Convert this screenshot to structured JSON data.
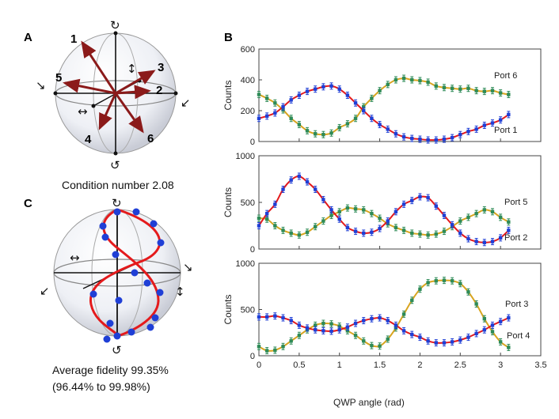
{
  "panels": {
    "A": "A",
    "B": "B",
    "C": "C"
  },
  "sphereA": {
    "vectors": [
      "1",
      "2",
      "3",
      "4",
      "5",
      "6"
    ],
    "caption": "Condition number 2.08",
    "pol_top": "↻",
    "pol_bottom": "↺",
    "pol_left": "↘",
    "pol_right": "↙",
    "pol_vert": "↕",
    "pol_horiz": "↔",
    "arrow_color": "#8b1a1a"
  },
  "sphereC": {
    "caption_line1": "Average fidelity 99.35%",
    "caption_line2": "(96.44% to 99.98%)",
    "pol_top": "↻",
    "pol_bottom": "↺",
    "pol_left": "↙",
    "pol_right": "↘",
    "pol_vert": "↕",
    "pol_horiz": "↔",
    "curve_color": "#e41a1c",
    "point_color": "#1f3fd6"
  },
  "chart_data": [
    {
      "type": "line",
      "title": "",
      "xlabel": "",
      "ylabel": "Counts",
      "xlim": [
        0,
        3.5
      ],
      "ylim": [
        0,
        600
      ],
      "yticks": [
        "0",
        "200",
        "400",
        "600"
      ],
      "series": [
        {
          "name": "Port 6",
          "color": "#d9a520",
          "point_color": "#2e8b57",
          "x": [
            0,
            0.1,
            0.2,
            0.3,
            0.4,
            0.5,
            0.6,
            0.7,
            0.8,
            0.9,
            1.0,
            1.1,
            1.2,
            1.3,
            1.4,
            1.5,
            1.6,
            1.7,
            1.8,
            1.9,
            2.0,
            2.1,
            2.2,
            2.3,
            2.4,
            2.5,
            2.6,
            2.7,
            2.8,
            2.9,
            3.0,
            3.1
          ],
          "values": [
            305,
            280,
            250,
            205,
            150,
            110,
            70,
            50,
            45,
            55,
            90,
            115,
            150,
            225,
            280,
            330,
            370,
            400,
            410,
            400,
            395,
            385,
            360,
            350,
            345,
            340,
            345,
            330,
            325,
            330,
            315,
            305
          ]
        },
        {
          "name": "Port 1",
          "color": "#e41a1c",
          "point_color": "#1f3fd6",
          "x": [
            0,
            0.1,
            0.2,
            0.3,
            0.4,
            0.5,
            0.6,
            0.7,
            0.8,
            0.9,
            1.0,
            1.1,
            1.2,
            1.3,
            1.4,
            1.5,
            1.6,
            1.7,
            1.8,
            1.9,
            2.0,
            2.1,
            2.2,
            2.3,
            2.4,
            2.5,
            2.6,
            2.7,
            2.8,
            2.9,
            3.0,
            3.1
          ],
          "values": [
            150,
            165,
            185,
            225,
            270,
            300,
            325,
            340,
            355,
            360,
            340,
            300,
            250,
            200,
            150,
            110,
            80,
            50,
            30,
            20,
            15,
            10,
            10,
            15,
            25,
            45,
            65,
            80,
            105,
            120,
            140,
            175
          ]
        }
      ],
      "annotations": [
        "Port 6",
        "Port 1"
      ]
    },
    {
      "type": "line",
      "title": "",
      "xlabel": "",
      "ylabel": "Counts",
      "xlim": [
        0,
        3.5
      ],
      "ylim": [
        0,
        1000
      ],
      "yticks": [
        "0",
        "500",
        "1000"
      ],
      "series": [
        {
          "name": "Port 5",
          "color": "#d9a520",
          "point_color": "#2e8b57",
          "x": [
            0,
            0.1,
            0.2,
            0.3,
            0.4,
            0.5,
            0.6,
            0.7,
            0.8,
            0.9,
            1.0,
            1.1,
            1.2,
            1.3,
            1.4,
            1.5,
            1.6,
            1.7,
            1.8,
            1.9,
            2.0,
            2.1,
            2.2,
            2.3,
            2.4,
            2.5,
            2.6,
            2.7,
            2.8,
            2.9,
            3.0,
            3.1
          ],
          "values": [
            330,
            320,
            250,
            200,
            170,
            150,
            180,
            240,
            300,
            360,
            400,
            440,
            430,
            420,
            380,
            330,
            270,
            230,
            200,
            170,
            160,
            150,
            160,
            190,
            240,
            300,
            340,
            380,
            420,
            400,
            340,
            290
          ]
        },
        {
          "name": "Port 2",
          "color": "#e41a1c",
          "point_color": "#1f3fd6",
          "x": [
            0,
            0.1,
            0.2,
            0.3,
            0.4,
            0.5,
            0.6,
            0.7,
            0.8,
            0.9,
            1.0,
            1.1,
            1.2,
            1.3,
            1.4,
            1.5,
            1.6,
            1.7,
            1.8,
            1.9,
            2.0,
            2.1,
            2.2,
            2.3,
            2.4,
            2.5,
            2.6,
            2.7,
            2.8,
            2.9,
            3.0,
            3.1
          ],
          "values": [
            250,
            380,
            480,
            640,
            740,
            780,
            720,
            640,
            530,
            420,
            320,
            230,
            190,
            170,
            180,
            220,
            300,
            400,
            480,
            520,
            560,
            550,
            460,
            360,
            260,
            170,
            110,
            80,
            70,
            80,
            120,
            200
          ]
        }
      ],
      "annotations": [
        "Port 5",
        "Port 2"
      ]
    },
    {
      "type": "line",
      "title": "",
      "xlabel": "QWP angle (rad)",
      "ylabel": "Counts",
      "xlim": [
        0,
        3.5
      ],
      "ylim": [
        0,
        1000
      ],
      "xticks": [
        "0",
        "0.5",
        "1",
        "1.5",
        "2",
        "2.5",
        "3",
        "3.5"
      ],
      "yticks": [
        "0",
        "500",
        "1000"
      ],
      "series": [
        {
          "name": "Port 3",
          "color": "#d9a520",
          "point_color": "#2e8b57",
          "x": [
            0,
            0.1,
            0.2,
            0.3,
            0.4,
            0.5,
            0.6,
            0.7,
            0.8,
            0.9,
            1.0,
            1.1,
            1.2,
            1.3,
            1.4,
            1.5,
            1.6,
            1.7,
            1.8,
            1.9,
            2.0,
            2.1,
            2.2,
            2.3,
            2.4,
            2.5,
            2.6,
            2.7,
            2.8,
            2.9,
            3.0,
            3.1
          ],
          "values": [
            100,
            55,
            60,
            100,
            160,
            220,
            280,
            330,
            350,
            345,
            320,
            270,
            220,
            160,
            110,
            105,
            180,
            300,
            450,
            600,
            720,
            790,
            810,
            815,
            810,
            780,
            690,
            560,
            400,
            260,
            150,
            90
          ]
        },
        {
          "name": "Port 4",
          "color": "#e41a1c",
          "point_color": "#1f3fd6",
          "x": [
            0,
            0.1,
            0.2,
            0.3,
            0.4,
            0.5,
            0.6,
            0.7,
            0.8,
            0.9,
            1.0,
            1.1,
            1.2,
            1.3,
            1.4,
            1.5,
            1.6,
            1.7,
            1.8,
            1.9,
            2.0,
            2.1,
            2.2,
            2.3,
            2.4,
            2.5,
            2.6,
            2.7,
            2.8,
            2.9,
            3.0,
            3.1
          ],
          "values": [
            420,
            420,
            430,
            410,
            380,
            330,
            300,
            280,
            270,
            265,
            280,
            310,
            350,
            380,
            400,
            410,
            380,
            330,
            270,
            230,
            200,
            160,
            140,
            140,
            150,
            170,
            200,
            240,
            280,
            330,
            370,
            410
          ]
        }
      ],
      "annotations": [
        "Port 3",
        "Port 4"
      ]
    }
  ]
}
